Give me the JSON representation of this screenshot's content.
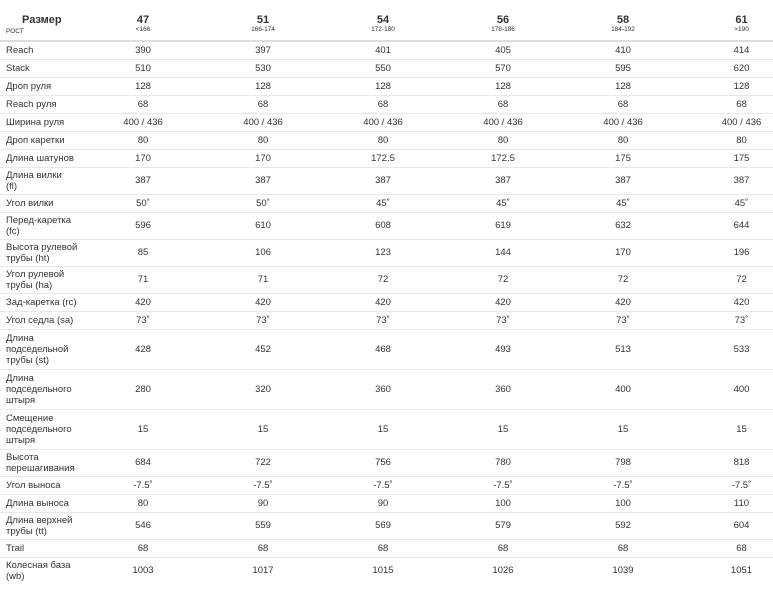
{
  "header": {
    "size_label": "Размер",
    "height_label": "РОСТ",
    "sizes": [
      {
        "size": "47",
        "height": "<166"
      },
      {
        "size": "51",
        "height": "166-174"
      },
      {
        "size": "54",
        "height": "172-180"
      },
      {
        "size": "56",
        "height": "178-186"
      },
      {
        "size": "58",
        "height": "184-192"
      },
      {
        "size": "61",
        "height": ">190"
      }
    ]
  },
  "rows": [
    {
      "label": "Reach",
      "values": [
        "390",
        "397",
        "401",
        "405",
        "410",
        "414"
      ]
    },
    {
      "label": "Stack",
      "values": [
        "510",
        "530",
        "550",
        "570",
        "595",
        "620"
      ]
    },
    {
      "label": "Дроп руля",
      "values": [
        "128",
        "128",
        "128",
        "128",
        "128",
        "128"
      ]
    },
    {
      "label": "Reach руля",
      "values": [
        "68",
        "68",
        "68",
        "68",
        "68",
        "68"
      ]
    },
    {
      "label": "Ширина руля",
      "values": [
        "400 / 436",
        "400 / 436",
        "400 / 436",
        "400 / 436",
        "400 / 436",
        "400 / 436"
      ]
    },
    {
      "label": "Дроп каретки",
      "values": [
        "80",
        "80",
        "80",
        "80",
        "80",
        "80"
      ]
    },
    {
      "label": "Длина шатунов",
      "values": [
        "170",
        "170",
        "172.5",
        "172.5",
        "175",
        "175"
      ]
    },
    {
      "label": "Длина вилки\n(fl)",
      "values": [
        "387",
        "387",
        "387",
        "387",
        "387",
        "387"
      ]
    },
    {
      "label": "Угол вилки",
      "values": [
        "50˚",
        "50˚",
        "45˚",
        "45˚",
        "45˚",
        "45˚"
      ]
    },
    {
      "label": "Перед-каретка\n(fc)",
      "values": [
        "596",
        "610",
        "608",
        "619",
        "632",
        "644"
      ]
    },
    {
      "label": "Высота рулевой\nтрубы (ht)",
      "values": [
        "85",
        "106",
        "123",
        "144",
        "170",
        "196"
      ]
    },
    {
      "label": "Угол рулевой\nтрубы (ha)",
      "values": [
        "71",
        "71",
        "72",
        "72",
        "72",
        "72"
      ]
    },
    {
      "label": "Зад-каретка (rc)",
      "values": [
        "420",
        "420",
        "420",
        "420",
        "420",
        "420"
      ]
    },
    {
      "label": "Угол седла (sa)",
      "values": [
        "73˚",
        "73˚",
        "73˚",
        "73˚",
        "73˚",
        "73˚"
      ]
    },
    {
      "label": "Длина\nподседельной\nтрубы (st)",
      "values": [
        "428",
        "452",
        "468",
        "493",
        "513",
        "533"
      ]
    },
    {
      "label": "Длина\nподседельного\nштыря",
      "values": [
        "280",
        "320",
        "360",
        "360",
        "400",
        "400"
      ]
    },
    {
      "label": "Смещение\nподседельного\nштыря",
      "values": [
        "15",
        "15",
        "15",
        "15",
        "15",
        "15"
      ]
    },
    {
      "label": "Высота\nперешагивания",
      "values": [
        "684",
        "722",
        "756",
        "780",
        "798",
        "818"
      ]
    },
    {
      "label": "Угол выноса",
      "values": [
        "-7.5˚",
        "-7.5˚",
        "-7.5˚",
        "-7.5˚",
        "-7.5˚",
        "-7.5˚"
      ]
    },
    {
      "label": "Длина выноса",
      "values": [
        "80",
        "90",
        "90",
        "100",
        "100",
        "110"
      ]
    },
    {
      "label": "Длина верхней\nтрубы (tt)",
      "values": [
        "546",
        "559",
        "569",
        "579",
        "592",
        "604"
      ]
    },
    {
      "label": "Trail",
      "values": [
        "68",
        "68",
        "68",
        "68",
        "68",
        "68"
      ]
    },
    {
      "label": "Колесная база\n(wb)",
      "values": [
        "1003",
        "1017",
        "1015",
        "1026",
        "1039",
        "1051"
      ]
    }
  ]
}
